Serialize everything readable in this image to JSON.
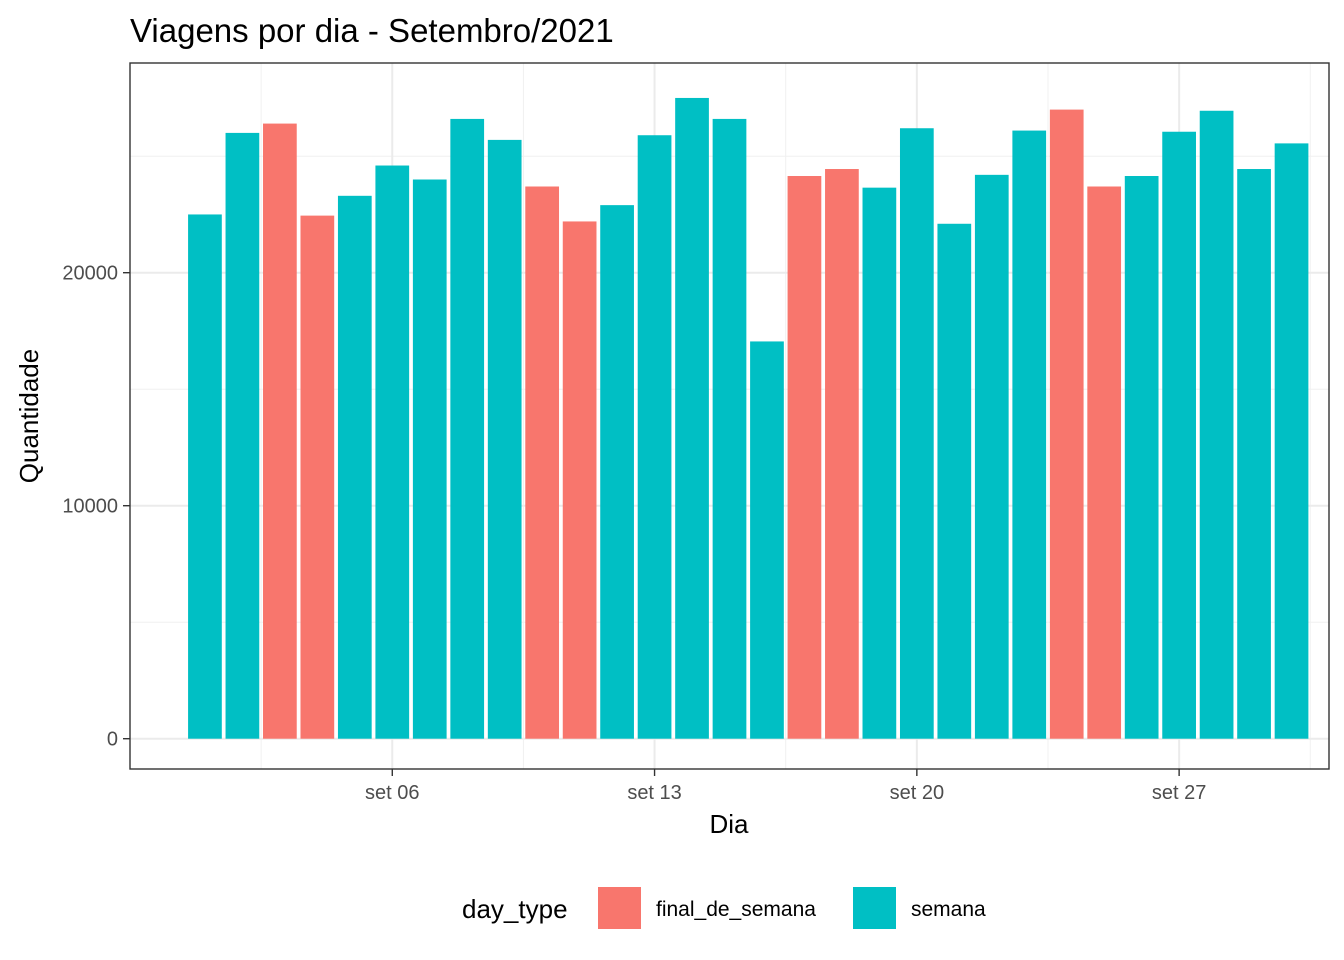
{
  "chart_data": {
    "type": "bar",
    "title": "Viagens por dia - Setembro/2021",
    "xlabel": "Dia",
    "ylabel": "Quantidade",
    "x": [
      "2021-09-01",
      "2021-09-02",
      "2021-09-03",
      "2021-09-04",
      "2021-09-05",
      "2021-09-06",
      "2021-09-07",
      "2021-09-08",
      "2021-09-09",
      "2021-09-10",
      "2021-09-11",
      "2021-09-12",
      "2021-09-13",
      "2021-09-14",
      "2021-09-15",
      "2021-09-16",
      "2021-09-17",
      "2021-09-18",
      "2021-09-19",
      "2021-09-20",
      "2021-09-21",
      "2021-09-22",
      "2021-09-23",
      "2021-09-24",
      "2021-09-25",
      "2021-09-26",
      "2021-09-27",
      "2021-09-28",
      "2021-09-29",
      "2021-09-30"
    ],
    "values": [
      22500,
      26000,
      26400,
      22450,
      23300,
      24600,
      24000,
      26600,
      25700,
      23700,
      22200,
      22900,
      25900,
      27500,
      26600,
      17050,
      24150,
      24450,
      23650,
      26200,
      22100,
      24200,
      26100,
      27000,
      23700,
      24150,
      26050,
      26950,
      24450,
      25550
    ],
    "day_type": [
      "semana",
      "semana",
      "final_de_semana",
      "final_de_semana",
      "semana",
      "semana",
      "semana",
      "semana",
      "semana",
      "final_de_semana",
      "final_de_semana",
      "semana",
      "semana",
      "semana",
      "semana",
      "semana",
      "final_de_semana",
      "final_de_semana",
      "semana",
      "semana",
      "semana",
      "semana",
      "semana",
      "final_de_semana",
      "final_de_semana",
      "semana",
      "semana",
      "semana",
      "semana",
      "semana"
    ],
    "x_ticks": [
      {
        "date": "2021-09-06",
        "label": "set 06"
      },
      {
        "date": "2021-09-13",
        "label": "set 13"
      },
      {
        "date": "2021-09-20",
        "label": "set 20"
      },
      {
        "date": "2021-09-27",
        "label": "set 27"
      }
    ],
    "y_ticks": [
      0,
      10000,
      20000
    ],
    "ylim": [
      -1300,
      29000
    ],
    "xlim": [
      "2021-08-30",
      "2021-10-01"
    ],
    "grid": true,
    "legend": {
      "title": "day_type",
      "position": "bottom",
      "entries": [
        {
          "name": "final_de_semana",
          "color": "#F8766D"
        },
        {
          "name": "semana",
          "color": "#00BFC4"
        }
      ]
    }
  }
}
